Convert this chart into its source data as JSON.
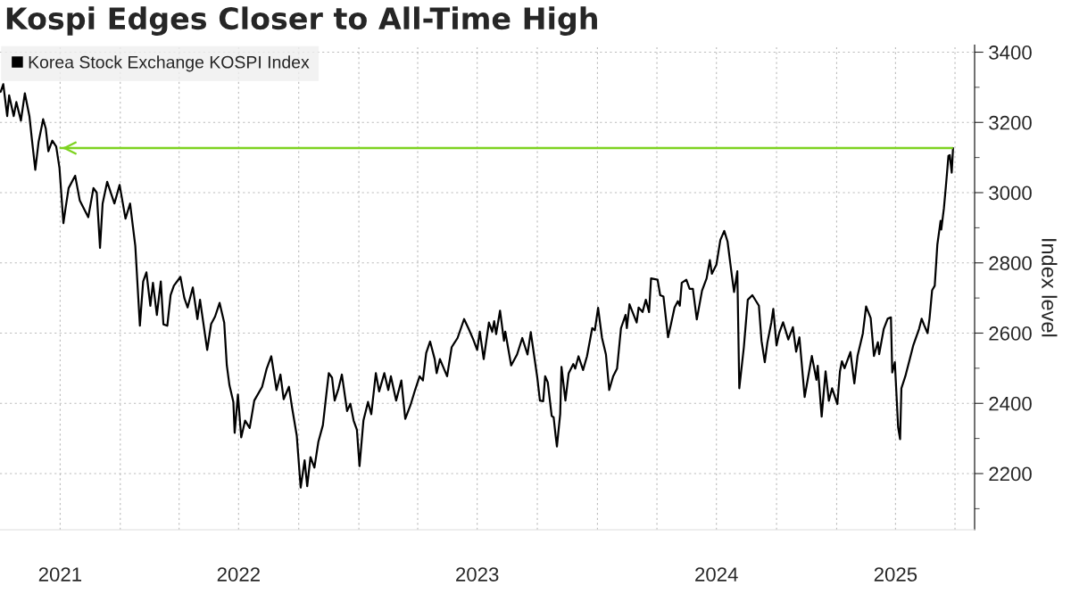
{
  "chart_data": {
    "type": "line",
    "title": "Kospi Edges Closer to All-Time High",
    "ylabel": "Index level",
    "x": [
      "2021-07-02",
      "2021-07-06",
      "2021-07-12",
      "2021-07-15",
      "2021-07-22",
      "2021-07-26",
      "2021-08-02",
      "2021-08-08",
      "2021-08-15",
      "2021-08-19",
      "2021-08-24",
      "2021-08-29",
      "2021-09-05",
      "2021-09-09",
      "2021-09-13",
      "2021-09-19",
      "2021-09-25",
      "2021-09-30",
      "2021-10-06",
      "2021-10-09",
      "2021-10-14",
      "2021-10-24",
      "2021-10-31",
      "2021-11-13",
      "2021-11-21",
      "2021-11-26",
      "2021-12-01",
      "2021-12-05",
      "2021-12-12",
      "2021-12-23",
      "2021-12-31",
      "2022-01-09",
      "2022-01-16",
      "2022-01-24",
      "2022-01-31",
      "2022-02-05",
      "2022-02-10",
      "2022-02-16",
      "2022-02-20",
      "2022-02-26",
      "2022-03-04",
      "2022-03-08",
      "2022-03-14",
      "2022-03-19",
      "2022-03-24",
      "2022-04-03",
      "2022-04-09",
      "2022-04-14",
      "2022-04-22",
      "2022-04-29",
      "2022-05-03",
      "2022-05-14",
      "2022-05-20",
      "2022-05-26",
      "2022-06-02",
      "2022-06-09",
      "2022-06-13",
      "2022-06-17",
      "2022-06-23",
      "2022-06-25",
      "2022-06-30",
      "2022-07-05",
      "2022-07-11",
      "2022-07-18",
      "2022-07-25",
      "2022-08-06",
      "2022-08-13",
      "2022-08-20",
      "2022-08-28",
      "2022-09-03",
      "2022-09-08",
      "2022-09-16",
      "2022-09-21",
      "2022-09-28",
      "2022-10-04",
      "2022-10-10",
      "2022-10-14",
      "2022-10-19",
      "2022-10-25",
      "2022-10-31",
      "2022-11-07",
      "2022-11-12",
      "2022-11-16",
      "2022-11-21",
      "2022-11-25",
      "2022-12-01",
      "2022-12-06",
      "2022-12-14",
      "2022-12-19",
      "2022-12-24",
      "2022-12-29",
      "2023-01-02",
      "2023-01-08",
      "2023-01-15",
      "2023-01-20",
      "2023-01-27",
      "2023-02-01",
      "2023-02-09",
      "2023-02-15",
      "2023-02-19",
      "2023-02-27",
      "2023-03-07",
      "2023-03-13",
      "2023-03-21",
      "2023-03-28",
      "2023-04-04",
      "2023-04-09",
      "2023-04-14",
      "2023-04-20",
      "2023-04-27",
      "2023-04-30",
      "2023-05-05",
      "2023-05-16",
      "2023-05-23",
      "2023-06-01",
      "2023-06-11",
      "2023-06-18",
      "2023-06-25",
      "2023-07-01",
      "2023-07-05",
      "2023-07-11",
      "2023-07-19",
      "2023-07-24",
      "2023-07-27",
      "2023-07-30",
      "2023-08-05",
      "2023-08-11",
      "2023-08-13",
      "2023-08-22",
      "2023-08-31",
      "2023-09-08",
      "2023-09-16",
      "2023-09-21",
      "2023-10-01",
      "2023-10-05",
      "2023-10-10",
      "2023-10-13",
      "2023-10-17",
      "2023-10-23",
      "2023-10-26",
      "2023-10-29",
      "2023-10-31",
      "2023-11-05",
      "2023-11-07",
      "2023-11-13",
      "2023-11-18",
      "2023-11-25",
      "2023-11-28",
      "2023-12-03",
      "2023-12-10",
      "2023-12-16",
      "2023-12-24",
      "2023-12-28",
      "2024-01-02",
      "2024-01-08",
      "2024-01-14",
      "2024-01-19",
      "2024-01-25",
      "2024-01-31",
      "2024-02-06",
      "2024-02-13",
      "2024-02-15",
      "2024-02-19",
      "2024-03-01",
      "2024-03-04",
      "2024-03-10",
      "2024-03-15",
      "2024-03-20",
      "2024-03-23",
      "2024-04-02",
      "2024-04-06",
      "2024-04-11",
      "2024-04-18",
      "2024-04-23",
      "2024-04-28",
      "2024-05-03",
      "2024-05-06",
      "2024-05-09",
      "2024-05-16",
      "2024-05-21",
      "2024-05-26",
      "2024-06-01",
      "2024-06-09",
      "2024-06-16",
      "2024-06-21",
      "2024-06-24",
      "2024-07-01",
      "2024-07-07",
      "2024-07-13",
      "2024-07-18",
      "2024-07-24",
      "2024-07-28",
      "2024-08-02",
      "2024-08-05",
      "2024-08-12",
      "2024-08-18",
      "2024-08-25",
      "2024-09-04",
      "2024-09-08",
      "2024-09-13",
      "2024-09-17",
      "2024-09-23",
      "2024-09-26",
      "2024-10-01",
      "2024-10-05",
      "2024-10-11",
      "2024-10-19",
      "2024-10-26",
      "2024-10-31",
      "2024-11-05",
      "2024-11-13",
      "2024-11-18",
      "2024-11-24",
      "2024-12-01",
      "2024-12-03",
      "2024-12-09",
      "2024-12-15",
      "2024-12-20",
      "2024-12-25",
      "2025-01-02",
      "2025-01-06",
      "2025-01-09",
      "2025-01-13",
      "2025-01-22",
      "2025-01-28",
      "2025-02-02",
      "2025-02-10",
      "2025-02-15",
      "2025-02-22",
      "2025-02-27",
      "2025-03-05",
      "2025-03-07",
      "2025-03-14",
      "2025-03-20",
      "2025-03-25",
      "2025-03-27",
      "2025-03-31",
      "2025-04-05",
      "2025-04-08",
      "2025-04-10",
      "2025-04-16",
      "2025-04-22",
      "2025-04-28",
      "2025-05-07",
      "2025-05-11",
      "2025-05-15",
      "2025-05-20",
      "2025-05-23",
      "2025-05-27",
      "2025-05-31",
      "2025-06-04",
      "2025-06-09",
      "2025-06-10",
      "2025-06-14",
      "2025-06-17",
      "2025-06-21",
      "2025-06-23",
      "2025-06-26",
      "2025-06-28"
    ],
    "series": [
      {
        "name": "Korea Stock Exchange KOSPI Index",
        "color": "#000000",
        "values": [
          3287,
          3309,
          3218,
          3277,
          3218,
          3258,
          3205,
          3283,
          3218,
          3148,
          3065,
          3144,
          3209,
          3183,
          3118,
          3148,
          3131,
          3070,
          2913,
          2952,
          3013,
          3048,
          2978,
          2930,
          3013,
          3000,
          2843,
          2969,
          3031,
          2969,
          3022,
          2926,
          2969,
          2848,
          2621,
          2747,
          2773,
          2678,
          2743,
          2652,
          2747,
          2625,
          2621,
          2708,
          2735,
          2760,
          2700,
          2673,
          2730,
          2640,
          2695,
          2552,
          2626,
          2647,
          2686,
          2630,
          2508,
          2452,
          2404,
          2316,
          2425,
          2303,
          2351,
          2330,
          2408,
          2447,
          2499,
          2534,
          2438,
          2482,
          2412,
          2447,
          2386,
          2308,
          2160,
          2238,
          2164,
          2247,
          2217,
          2290,
          2338,
          2421,
          2486,
          2473,
          2408,
          2443,
          2482,
          2378,
          2399,
          2351,
          2325,
          2221,
          2351,
          2404,
          2369,
          2486,
          2434,
          2486,
          2438,
          2477,
          2408,
          2465,
          2356,
          2395,
          2438,
          2477,
          2465,
          2543,
          2576,
          2526,
          2486,
          2526,
          2477,
          2560,
          2586,
          2640,
          2612,
          2582,
          2552,
          2604,
          2526,
          2630,
          2604,
          2634,
          2597,
          2664,
          2578,
          2604,
          2508,
          2539,
          2586,
          2539,
          2603,
          2473,
          2408,
          2406,
          2477,
          2460,
          2364,
          2360,
          2308,
          2277,
          2369,
          2504,
          2408,
          2486,
          2512,
          2499,
          2534,
          2495,
          2534,
          2614,
          2608,
          2672,
          2586,
          2539,
          2438,
          2477,
          2499,
          2614,
          2652,
          2614,
          2682,
          2630,
          2673,
          2660,
          2695,
          2660,
          2756,
          2752,
          2708,
          2704,
          2588,
          2630,
          2673,
          2691,
          2678,
          2743,
          2752,
          2726,
          2726,
          2639,
          2721,
          2756,
          2808,
          2769,
          2795,
          2865,
          2891,
          2861,
          2773,
          2717,
          2776,
          2443,
          2560,
          2695,
          2708,
          2678,
          2578,
          2517,
          2573,
          2630,
          2669,
          2565,
          2600,
          2631,
          2582,
          2617,
          2547,
          2588,
          2418,
          2471,
          2535,
          2467,
          2507,
          2362,
          2491,
          2407,
          2443,
          2398,
          2491,
          2520,
          2500,
          2546,
          2457,
          2536,
          2599,
          2676,
          2643,
          2535,
          2574,
          2540,
          2612,
          2641,
          2645,
          2488,
          2517,
          2332,
          2298,
          2443,
          2477,
          2520,
          2564,
          2612,
          2641,
          2622,
          2600,
          2641,
          2722,
          2735,
          2852,
          2920,
          2895,
          2955,
          3017,
          3105,
          3107,
          3057,
          3127
        ]
      }
    ],
    "xlim": [
      "2021-07-01",
      "2025-07-31"
    ],
    "xticks": [
      {
        "value": "2021-10-01",
        "label": "2021"
      },
      {
        "value": "2022-01-01",
        "label": null
      },
      {
        "value": "2022-04-01",
        "label": null
      },
      {
        "value": "2022-07-01",
        "label": "2022"
      },
      {
        "value": "2022-10-01",
        "label": null
      },
      {
        "value": "2023-01-01",
        "label": null
      },
      {
        "value": "2023-04-01",
        "label": null
      },
      {
        "value": "2023-07-01",
        "label": "2023"
      },
      {
        "value": "2023-10-01",
        "label": null
      },
      {
        "value": "2024-01-01",
        "label": null
      },
      {
        "value": "2024-04-01",
        "label": null
      },
      {
        "value": "2024-07-01",
        "label": "2024"
      },
      {
        "value": "2024-10-01",
        "label": null
      },
      {
        "value": "2025-01-01",
        "label": null
      },
      {
        "value": "2025-04-01",
        "label": "2025"
      },
      {
        "value": "2025-07-01",
        "label": null
      }
    ],
    "ylim": [
      2040,
      3420
    ],
    "yticks": [
      {
        "value": 2100,
        "label": null
      },
      2200,
      {
        "value": 2300,
        "label": null
      },
      2400,
      {
        "value": 2500,
        "label": null
      },
      2600,
      {
        "value": 2700,
        "label": null
      },
      2800,
      {
        "value": 2900,
        "label": null
      },
      3000,
      {
        "value": 3100,
        "label": null
      },
      3200,
      {
        "value": 3300,
        "label": null
      },
      3400
    ],
    "ref_lines": [
      {
        "axis": "y",
        "value": 3127,
        "color": "#7ed321"
      }
    ],
    "grid": true,
    "legend": "top left",
    "line_style": "solid",
    "marker": "none"
  }
}
